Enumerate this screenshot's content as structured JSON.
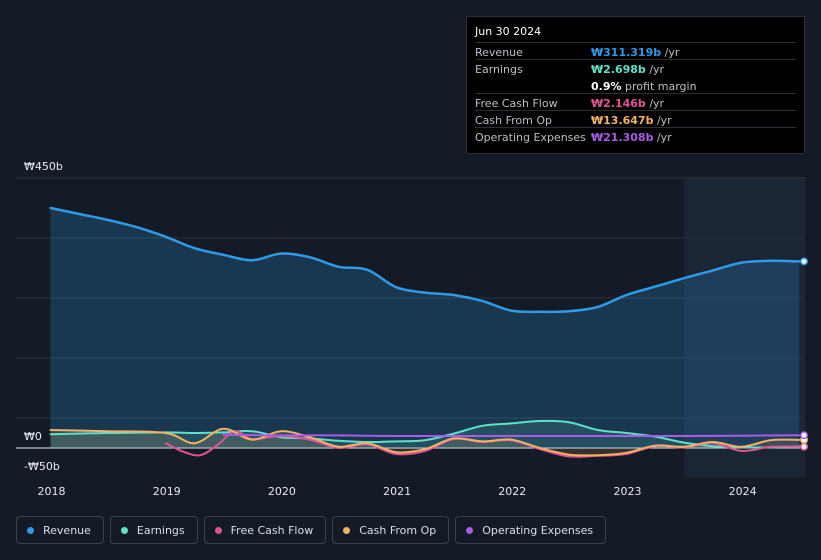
{
  "tooltip": {
    "date": "Jun 30 2024",
    "rows": [
      {
        "label": "Revenue",
        "value": "₩311.319b",
        "unit": "/yr",
        "color": "#2f9ae6"
      },
      {
        "label": "Earnings",
        "value": "₩2.698b",
        "unit": "/yr",
        "color": "#5fe0c7"
      },
      {
        "label": "Free Cash Flow",
        "value": "₩2.146b",
        "unit": "/yr",
        "color": "#e0558f"
      },
      {
        "label": "Cash From Op",
        "value": "₩13.647b",
        "unit": "/yr",
        "color": "#f2b266"
      },
      {
        "label": "Operating Expenses",
        "value": "₩21.308b",
        "unit": "/yr",
        "color": "#a95be8"
      }
    ],
    "margin_value": "0.9%",
    "margin_label": "profit margin"
  },
  "axis": {
    "y_top": "₩450b",
    "y_zero": "₩0",
    "y_bottom": "-₩50b",
    "x_ticks": [
      "2018",
      "2019",
      "2020",
      "2021",
      "2022",
      "2023",
      "2024"
    ]
  },
  "legend": [
    {
      "label": "Revenue",
      "color": "#2f9ae6"
    },
    {
      "label": "Earnings",
      "color": "#5fe0c7"
    },
    {
      "label": "Free Cash Flow",
      "color": "#e0558f"
    },
    {
      "label": "Cash From Op",
      "color": "#f2b266"
    },
    {
      "label": "Operating Expenses",
      "color": "#a95be8"
    }
  ],
  "chart_data": {
    "type": "area",
    "ylim": [
      -50,
      450
    ],
    "xlim": [
      2017.7,
      2024.55
    ],
    "highlight_start": 2023.5,
    "grid": true,
    "series": [
      {
        "name": "Revenue",
        "color": "#2f9ae6",
        "fill": true,
        "points": [
          [
            2018.0,
            400
          ],
          [
            2018.25,
            390
          ],
          [
            2018.5,
            380
          ],
          [
            2018.75,
            368
          ],
          [
            2019.0,
            352
          ],
          [
            2019.25,
            333
          ],
          [
            2019.5,
            322
          ],
          [
            2019.75,
            313
          ],
          [
            2020.0,
            324
          ],
          [
            2020.25,
            318
          ],
          [
            2020.5,
            302
          ],
          [
            2020.75,
            297
          ],
          [
            2021.0,
            268
          ],
          [
            2021.25,
            259
          ],
          [
            2021.5,
            255
          ],
          [
            2021.75,
            245
          ],
          [
            2022.0,
            229
          ],
          [
            2022.25,
            227
          ],
          [
            2022.5,
            228
          ],
          [
            2022.75,
            235
          ],
          [
            2023.0,
            255
          ],
          [
            2023.25,
            269
          ],
          [
            2023.5,
            283
          ],
          [
            2023.75,
            296
          ],
          [
            2024.0,
            309
          ],
          [
            2024.25,
            312
          ],
          [
            2024.5,
            311
          ]
        ]
      },
      {
        "name": "Earnings",
        "color": "#5fe0c7",
        "fill": true,
        "points": [
          [
            2018.0,
            23
          ],
          [
            2018.5,
            25
          ],
          [
            2019.0,
            26
          ],
          [
            2019.25,
            25
          ],
          [
            2019.5,
            26
          ],
          [
            2019.75,
            28
          ],
          [
            2020.0,
            18
          ],
          [
            2020.25,
            16
          ],
          [
            2020.5,
            12
          ],
          [
            2020.75,
            10
          ],
          [
            2021.0,
            11
          ],
          [
            2021.25,
            13
          ],
          [
            2021.5,
            24
          ],
          [
            2021.75,
            37
          ],
          [
            2022.0,
            41
          ],
          [
            2022.25,
            45
          ],
          [
            2022.5,
            43
          ],
          [
            2022.75,
            30
          ],
          [
            2023.0,
            25
          ],
          [
            2023.25,
            19
          ],
          [
            2023.5,
            9
          ],
          [
            2023.75,
            3
          ],
          [
            2024.0,
            1
          ],
          [
            2024.25,
            1
          ],
          [
            2024.5,
            2.7
          ]
        ]
      },
      {
        "name": "Free Cash Flow",
        "color": "#e0558f",
        "fill": false,
        "points": [
          [
            2019.0,
            8
          ],
          [
            2019.15,
            -6
          ],
          [
            2019.3,
            -12
          ],
          [
            2019.45,
            5
          ],
          [
            2019.6,
            28
          ],
          [
            2019.75,
            15
          ],
          [
            2020.0,
            20
          ],
          [
            2020.25,
            14
          ],
          [
            2020.5,
            0
          ],
          [
            2020.75,
            6
          ],
          [
            2021.0,
            -10
          ],
          [
            2021.25,
            -5
          ],
          [
            2021.5,
            15
          ],
          [
            2021.75,
            10
          ],
          [
            2022.0,
            13
          ],
          [
            2022.25,
            -2
          ],
          [
            2022.5,
            -14
          ],
          [
            2022.75,
            -13
          ],
          [
            2023.0,
            -10
          ],
          [
            2023.25,
            3
          ],
          [
            2023.5,
            1
          ],
          [
            2023.75,
            8
          ],
          [
            2024.0,
            -5
          ],
          [
            2024.25,
            2
          ],
          [
            2024.5,
            2.1
          ]
        ]
      },
      {
        "name": "Cash From Op",
        "color": "#f2b266",
        "fill": true,
        "points": [
          [
            2018.0,
            30
          ],
          [
            2018.5,
            28
          ],
          [
            2019.0,
            25
          ],
          [
            2019.25,
            8
          ],
          [
            2019.5,
            32
          ],
          [
            2019.75,
            14
          ],
          [
            2020.0,
            28
          ],
          [
            2020.25,
            18
          ],
          [
            2020.5,
            2
          ],
          [
            2020.75,
            8
          ],
          [
            2021.0,
            -7
          ],
          [
            2021.25,
            -2
          ],
          [
            2021.5,
            16
          ],
          [
            2021.75,
            11
          ],
          [
            2022.0,
            14
          ],
          [
            2022.25,
            0
          ],
          [
            2022.5,
            -11
          ],
          [
            2022.75,
            -12
          ],
          [
            2023.0,
            -8
          ],
          [
            2023.25,
            4
          ],
          [
            2023.5,
            2
          ],
          [
            2023.75,
            10
          ],
          [
            2024.0,
            2
          ],
          [
            2024.25,
            13
          ],
          [
            2024.5,
            13.6
          ]
        ]
      },
      {
        "name": "Operating Expenses",
        "color": "#a95be8",
        "fill": false,
        "points": [
          [
            2019.5,
            22
          ],
          [
            2020.0,
            21
          ],
          [
            2020.5,
            21
          ],
          [
            2021.0,
            20
          ],
          [
            2021.5,
            20
          ],
          [
            2022.0,
            20
          ],
          [
            2022.5,
            20
          ],
          [
            2023.0,
            20
          ],
          [
            2023.5,
            20
          ],
          [
            2024.0,
            20.5
          ],
          [
            2024.5,
            21.3
          ]
        ]
      }
    ]
  }
}
